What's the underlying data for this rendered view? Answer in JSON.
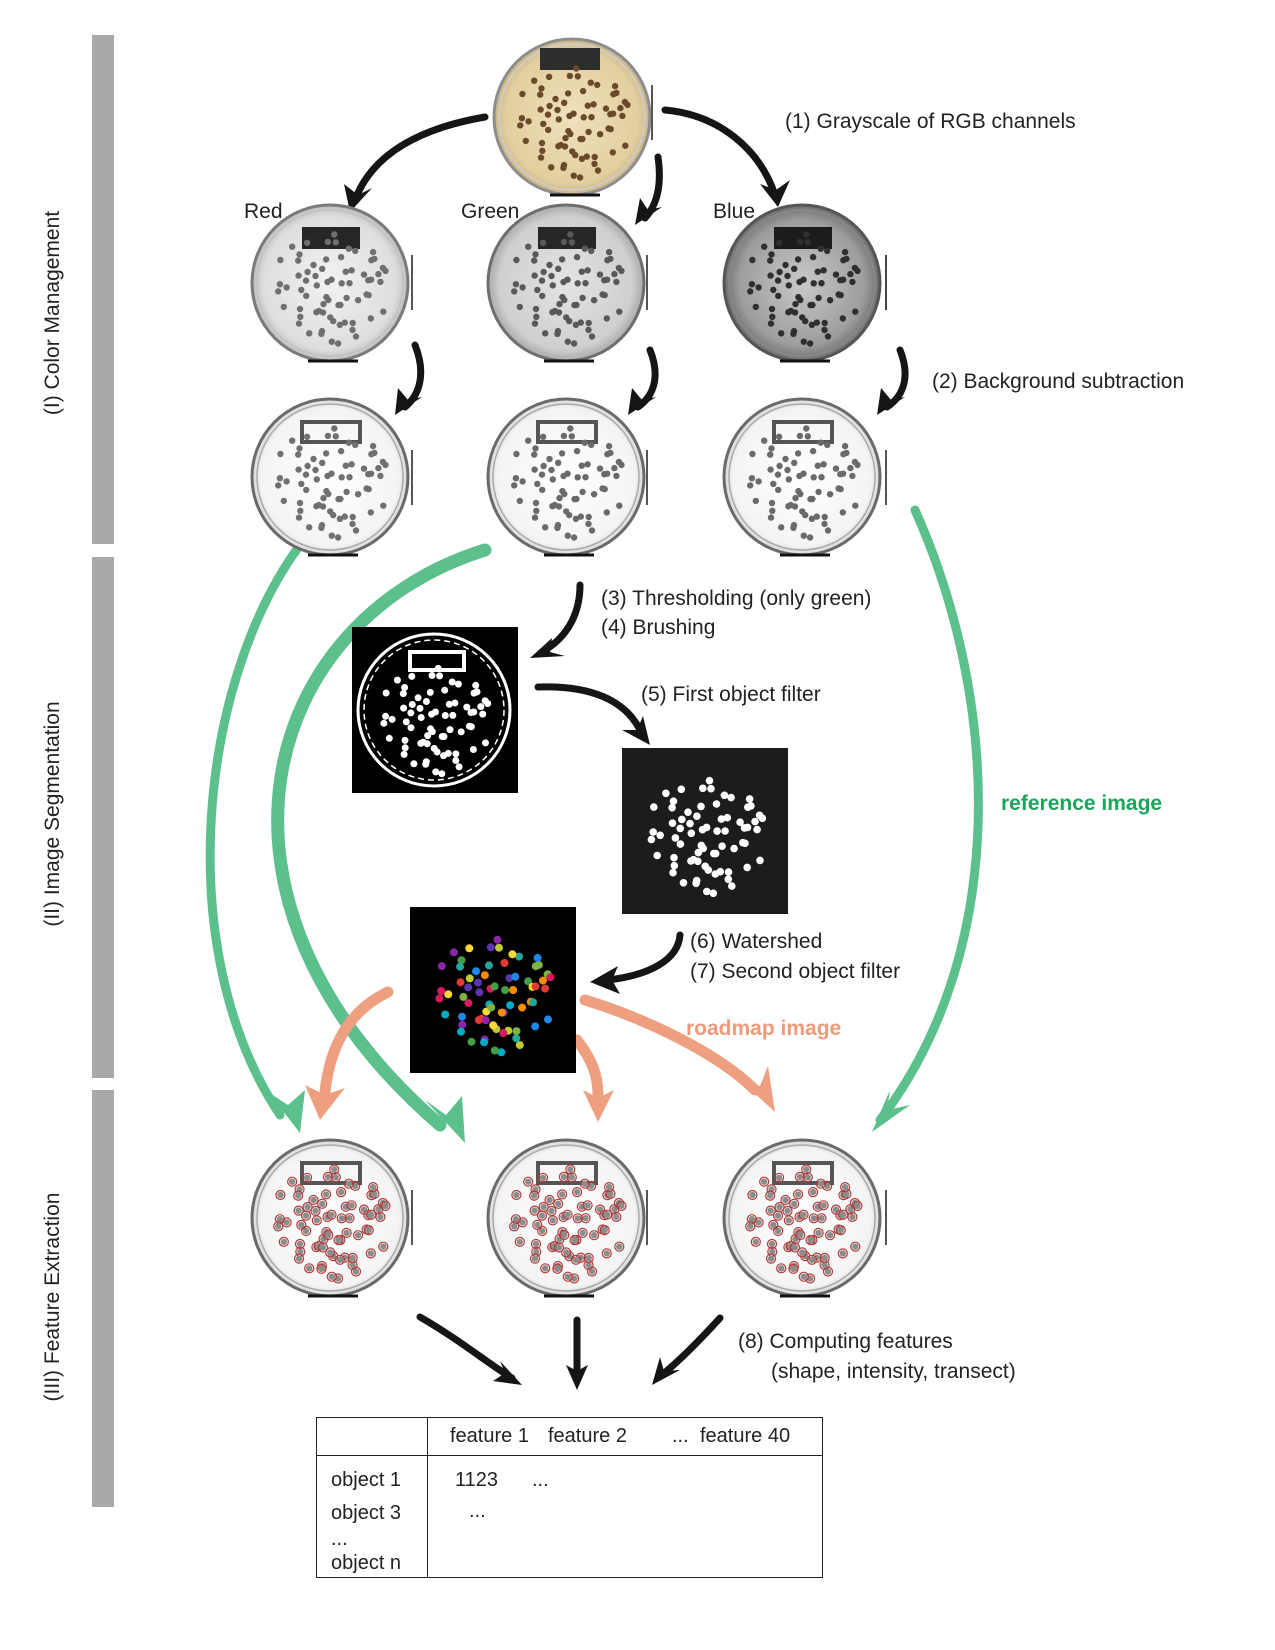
{
  "stages": [
    {
      "label": "(I) Color Management"
    },
    {
      "label": "(II) Image Segmentation"
    },
    {
      "label": "(III) Feature Extraction"
    }
  ],
  "channels": [
    "Red",
    "Green",
    "Blue"
  ],
  "steps": {
    "s1": "(1) Grayscale of RGB channels",
    "s2": "(2) Background subtraction",
    "s3": "(3) Thresholding (only green)",
    "s4": "(4) Brushing",
    "s5": "(5) First object filter",
    "s6": "(6) Watershed",
    "s7": "(7) Second object filter",
    "s8a": "(8) Computing features",
    "s8b": "(shape, intensity, transect)"
  },
  "annotations": {
    "reference": "reference image",
    "roadmap": "roadmap image"
  },
  "table": {
    "headers": [
      "feature 1",
      "feature 2",
      "...",
      "feature 40"
    ],
    "rows": [
      "object 1",
      "object 3",
      "...",
      "object n"
    ],
    "cells": [
      "1123",
      "...",
      "..."
    ]
  },
  "colors": {
    "green_arrow": "#5cc08c",
    "salmon_arrow": "#ee9f80",
    "plate_tan": "#e8d6ad",
    "colony": "#6a4a2a"
  }
}
